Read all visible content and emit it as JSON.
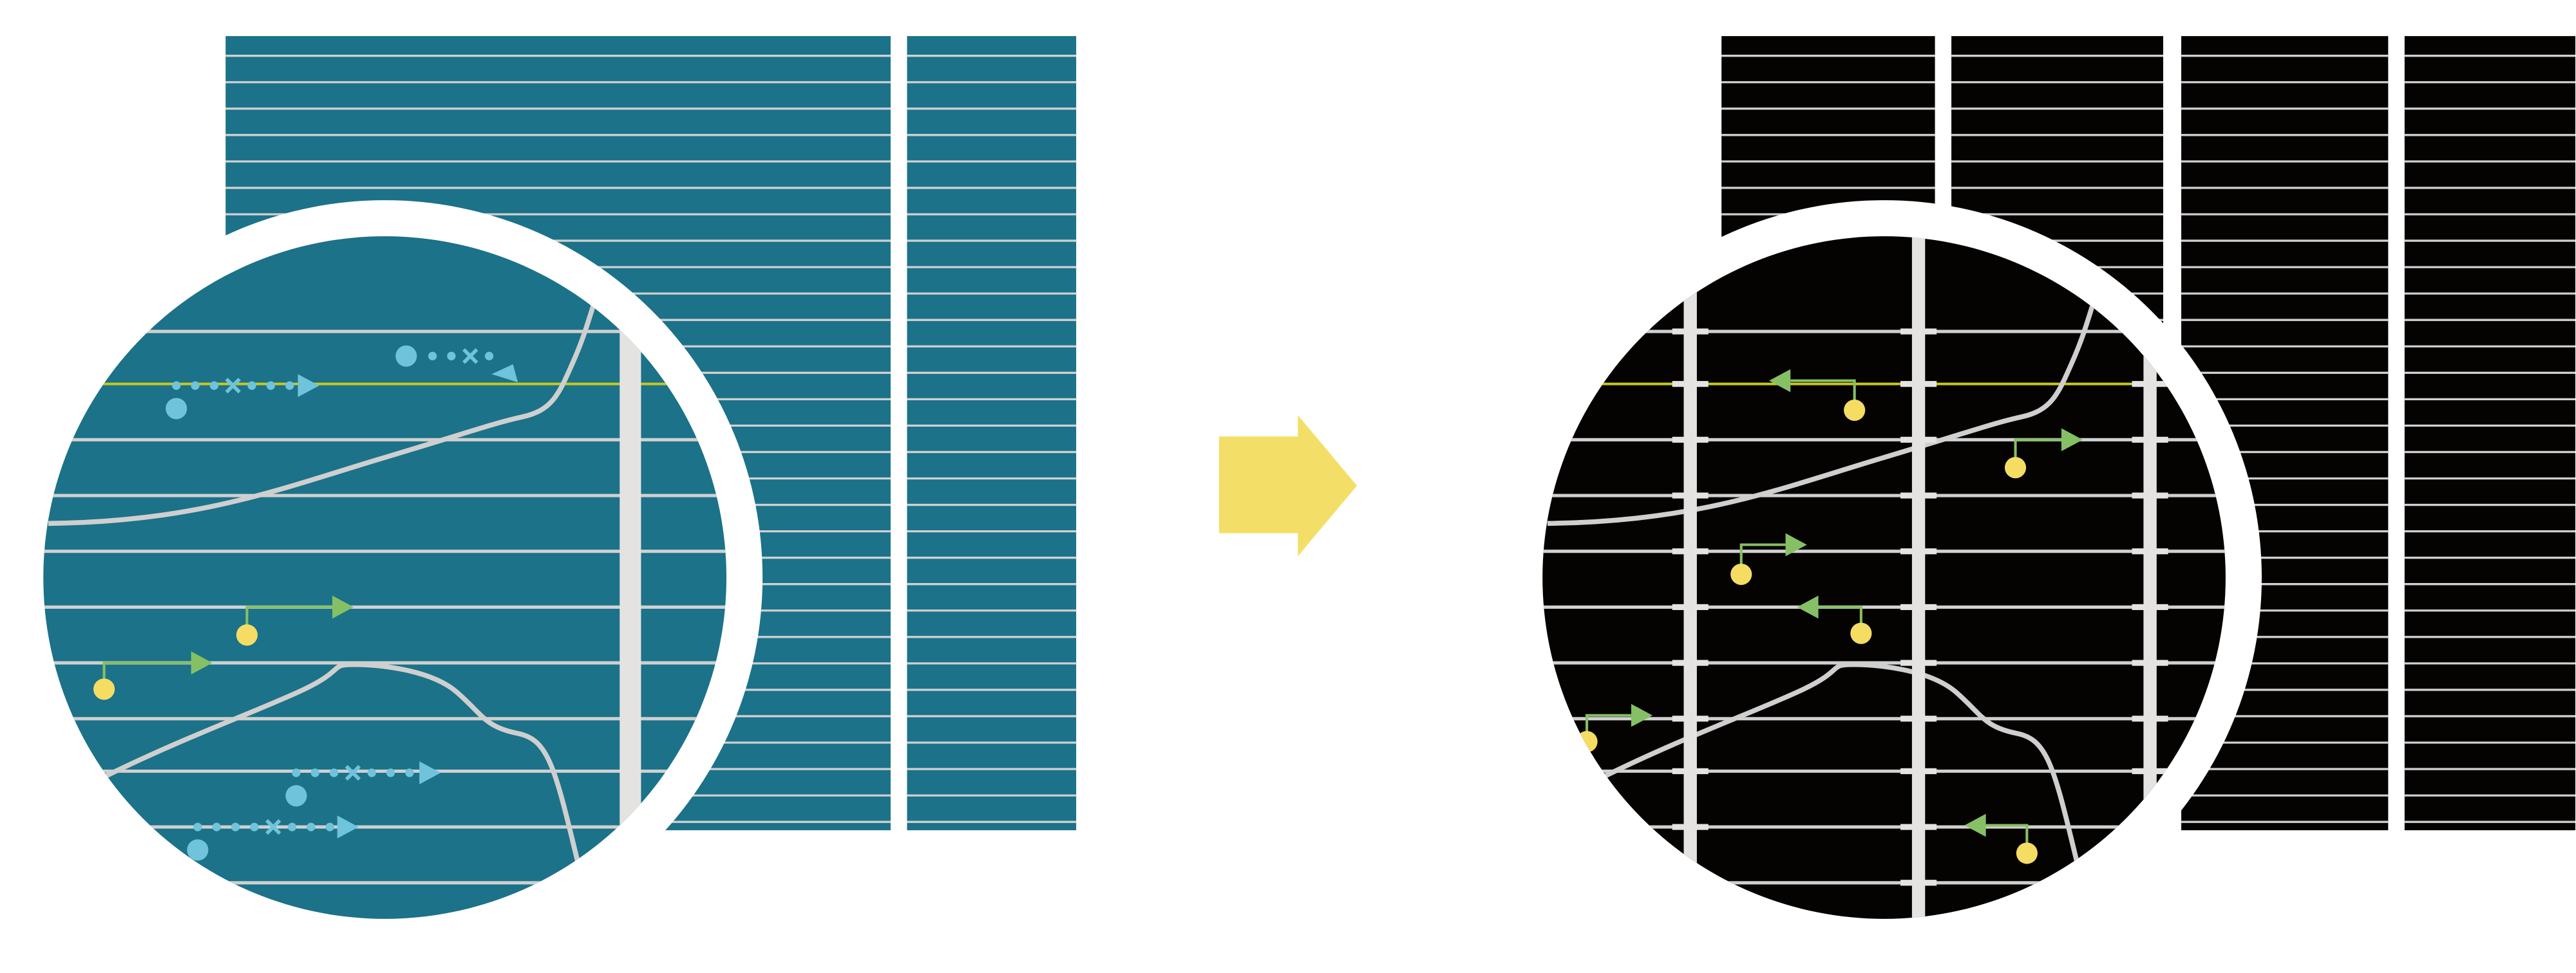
{
  "colors": {
    "background": "#ffffff",
    "left_panel": "#1b7289",
    "right_panel": "#050202",
    "grid_line": "#d0d0d0",
    "track_bar": "#e4e3e1",
    "highlight_line": "#c8c81e",
    "curve": "#cfcfcf",
    "blue_marker": "#6fc3da",
    "yellow_marker": "#f5dd63",
    "green_arrow": "#86c065",
    "transition_arrow": "#f3df67",
    "lens_ring": "#ffffff"
  },
  "icons": {
    "transition": "right-arrow-icon",
    "left_lens": "magnifier-lens-icon",
    "right_lens": "magnifier-lens-icon"
  }
}
